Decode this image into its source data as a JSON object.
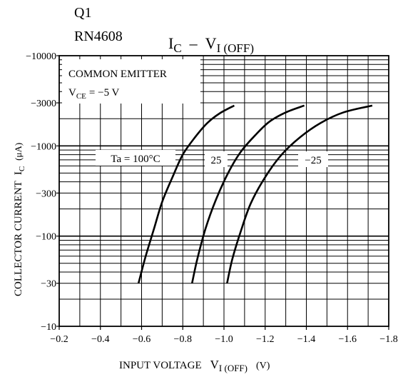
{
  "header": {
    "q_label": "Q1",
    "part_number": "RN4608"
  },
  "chart_data": {
    "type": "line",
    "title": "IC – VI(OFF)",
    "title_main": "I",
    "title_main_sub": "C",
    "title_dash": "–",
    "title_second": "V",
    "title_second_sub": "I (OFF)",
    "xlabel_main": "INPUT VOLTAGE",
    "xlabel_symbol": "V",
    "xlabel_sub": "I (OFF)",
    "xlabel_unit": "(V)",
    "ylabel_main": "COLLECTOR CURRENT",
    "ylabel_symbol": "I",
    "ylabel_sub": "C",
    "ylabel_unit": "(μA)",
    "x_axis": {
      "min": -0.2,
      "max": -1.8,
      "ticks": [
        -0.2,
        -0.4,
        -0.6,
        -0.8,
        -1.0,
        -1.2,
        -1.4,
        -1.6,
        -1.8
      ],
      "tick_labels": [
        "−0.2",
        "−0.4",
        "−0.6",
        "−0.8",
        "−1.0",
        "−1.2",
        "−1.4",
        "−1.6",
        "−1.8"
      ]
    },
    "y_axis": {
      "scale": "log",
      "min": -10,
      "max": -10000,
      "ticks": [
        -10,
        -30,
        -100,
        -300,
        -1000,
        -3000,
        -10000
      ],
      "tick_labels": [
        "−10",
        "−30",
        "−100",
        "−300",
        "−1000",
        "−3000",
        "−10000"
      ]
    },
    "legend": {
      "line1": "COMMON EMITTER",
      "line2_symbol": "V",
      "line2_sub": "CE",
      "line2_value": "= −5 V"
    },
    "series": [
      {
        "name": "Ta = 100°C",
        "x": [
          -0.585,
          -0.62,
          -0.66,
          -0.7,
          -0.75,
          -0.8,
          -0.86,
          -0.92,
          -0.98,
          -1.05
        ],
        "y": [
          -30,
          -60,
          -120,
          -240,
          -450,
          -800,
          -1250,
          -1800,
          -2300,
          -2800
        ]
      },
      {
        "name": "25",
        "x": [
          -0.845,
          -0.87,
          -0.91,
          -0.96,
          -1.02,
          -1.08,
          -1.15,
          -1.22,
          -1.3,
          -1.39
        ],
        "y": [
          -30,
          -55,
          -120,
          -250,
          -500,
          -850,
          -1300,
          -1850,
          -2350,
          -2800
        ]
      },
      {
        "name": "−25",
        "x": [
          -1.015,
          -1.04,
          -1.08,
          -1.13,
          -1.2,
          -1.28,
          -1.37,
          -1.47,
          -1.58,
          -1.72
        ],
        "y": [
          -30,
          -55,
          -110,
          -230,
          -450,
          -800,
          -1250,
          -1800,
          -2350,
          -2800
        ]
      }
    ]
  }
}
